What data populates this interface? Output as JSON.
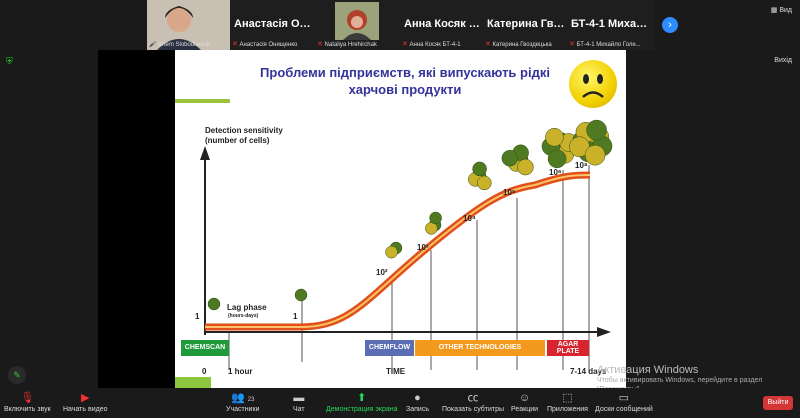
{
  "participants": [
    {
      "name": "",
      "label": "Artem Slobodianiuk",
      "video": true
    },
    {
      "name": "Анастасія Они...",
      "label": "Анастасія Онищенко",
      "video": false
    },
    {
      "name": "",
      "label": "Nataliya Hrehirchak",
      "video": true
    },
    {
      "name": "Анна Косяк БТ-...",
      "label": "Анна Косяк БТ-4-1",
      "video": false
    },
    {
      "name": "Катерина Гвозд...",
      "label": "Катерина Гвоздецька",
      "video": false
    },
    {
      "name": "БТ-4-1 Михайл...",
      "label": "БТ-4-1 Михайло Голе...",
      "video": false
    }
  ],
  "view_label": "Вид",
  "exit_label": "Вихід",
  "slide": {
    "title": "Проблеми підприємств, які випускають рідкі харчові продукти",
    "y_axis_label": "Detection sensitivity (number of cells)",
    "lag_phase": "Lag phase",
    "lag_phase_sub": "(hours-days)",
    "start_label": "1",
    "point_labels": [
      "1",
      "10²",
      "10³",
      "10⁴",
      "10⁵",
      "10⁶",
      "10⁸"
    ],
    "bars": [
      {
        "label": "CHEMSCAN",
        "color": "#1f9a3a"
      },
      {
        "label": "CHEMFLOW",
        "color": "#5b6db5"
      },
      {
        "label": "OTHER TECHNOLOGIES",
        "color": "#f39a1e"
      },
      {
        "label": "AGAR PLATE",
        "color": "#d9232e"
      }
    ],
    "x_labels": {
      "zero": "0",
      "hour": "1 hour",
      "time": "TIME",
      "days": "7-14 days"
    }
  },
  "watermark": {
    "title": "Активация Windows",
    "text": "Чтобы активировать Windows, перейдите в раздел \"Параметры\"."
  },
  "toolbar": {
    "mute": "Включить звук",
    "video": "Начать видео",
    "participants": "Участники",
    "participants_count": "23",
    "chat": "Чат",
    "share": "Демонстрация экрана",
    "record": "Запись",
    "captions": "Показать субтитры",
    "reactions": "Реакции",
    "apps": "Приложения",
    "whiteboards": "Доски сообщений",
    "leave": "Выйти"
  },
  "colors": {
    "accent": "#2d8cff",
    "share": "#23d959",
    "leave": "#d43636",
    "title": "#33339a",
    "curve": "#f26a1b"
  }
}
